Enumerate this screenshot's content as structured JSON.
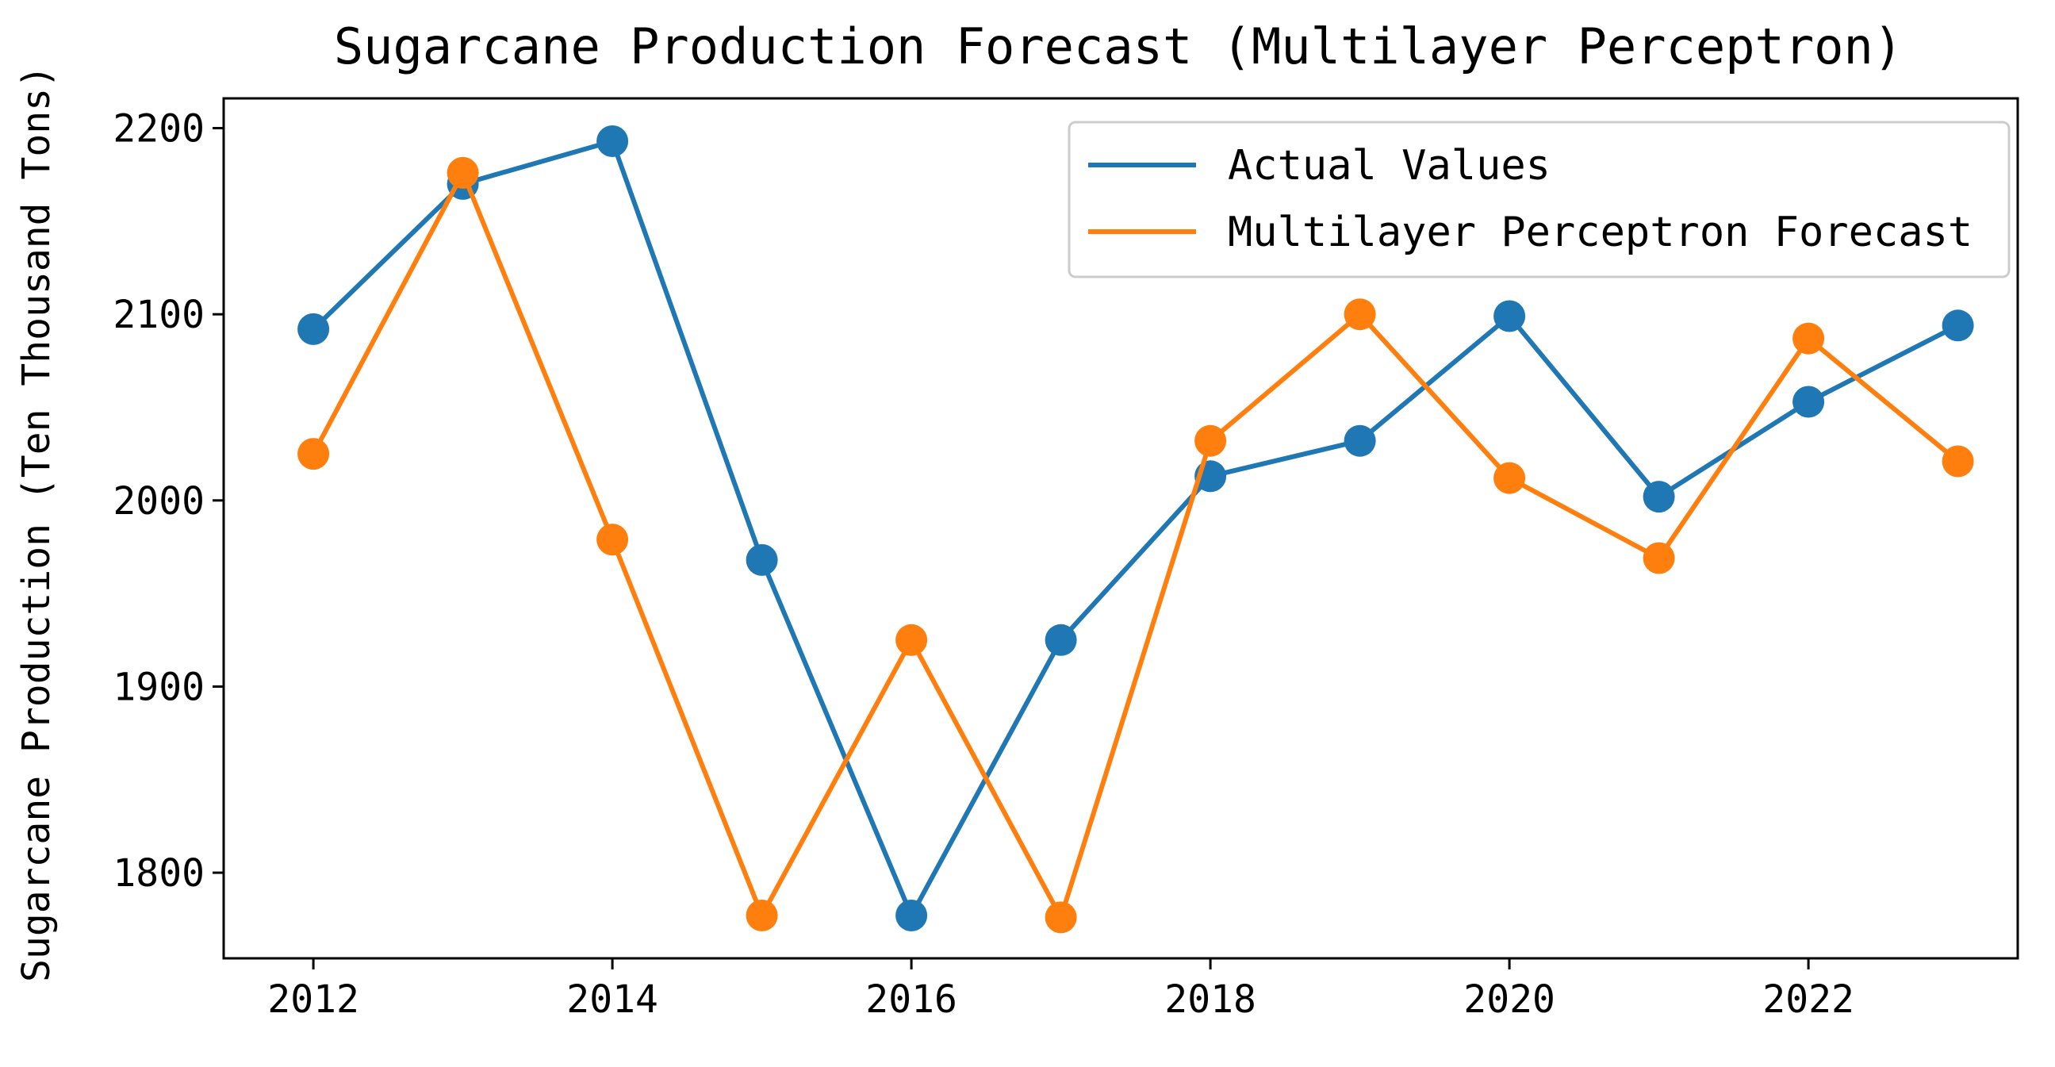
{
  "chart_data": {
    "type": "line",
    "title": "Sugarcane Production Forecast (Multilayer Perceptron)",
    "xlabel": "",
    "ylabel": "Sugarcane Production (Ten Thousand Tons)",
    "x": [
      2012,
      2013,
      2014,
      2015,
      2016,
      2017,
      2018,
      2019,
      2020,
      2021,
      2022,
      2023
    ],
    "xlim": [
      2011.4,
      2023.4
    ],
    "ylim": [
      1754,
      2216
    ],
    "xticks": [
      "2012",
      "2014",
      "2016",
      "2018",
      "2020",
      "2022"
    ],
    "yticks": [
      "1800",
      "1900",
      "2000",
      "2100",
      "2200"
    ],
    "grid": false,
    "legend_position": "top-right",
    "series": [
      {
        "name": "Actual Values",
        "color": "#1f77b4",
        "values": [
          2092,
          2170,
          2193,
          1968,
          1777,
          1925,
          2013,
          2032,
          2099,
          2002,
          2053,
          2094
        ]
      },
      {
        "name": "Multilayer Perceptron Forecast",
        "color": "#ff7f0e",
        "values": [
          2025,
          2176,
          1979,
          1777,
          1925,
          1776,
          2032,
          2100,
          2012,
          1969,
          2087,
          2021
        ]
      }
    ]
  }
}
